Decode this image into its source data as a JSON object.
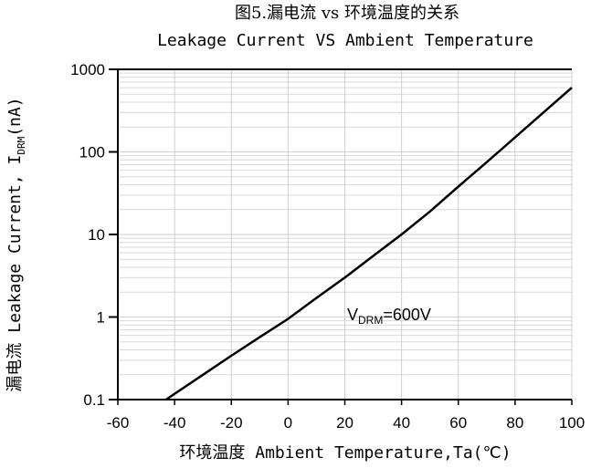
{
  "chart_data": {
    "type": "line",
    "title": "图5.漏电流 vs 环境温度的关系",
    "subtitle": "Leakage Current VS Ambient Temperature",
    "xlabel": "环境温度 Ambient Temperature,Ta(℃)",
    "ylabel": {
      "main": "漏电流 Leakage Current, I",
      "sub": "DRM",
      "unit": "(nA)"
    },
    "xlim": [
      -60,
      100
    ],
    "ylim": [
      0.1,
      1000
    ],
    "yscale": "log",
    "x_ticks": [
      "-60",
      "-40",
      "-20",
      "0",
      "20",
      "40",
      "60",
      "80",
      "100"
    ],
    "y_ticks": [
      "0.1",
      "1",
      "10",
      "100",
      "1000"
    ],
    "grid": true,
    "annotation": {
      "main": "V",
      "sub": "DRM",
      "rest": "=600V"
    },
    "series": [
      {
        "color": "#000000",
        "x": [
          -43,
          -30,
          -20,
          -10,
          0,
          10,
          20,
          30,
          40,
          50,
          60,
          70,
          80,
          90,
          100
        ],
        "y": [
          0.1,
          0.2,
          0.34,
          0.57,
          0.95,
          1.7,
          3.0,
          5.5,
          10,
          19,
          38,
          75,
          150,
          300,
          600
        ]
      }
    ]
  }
}
